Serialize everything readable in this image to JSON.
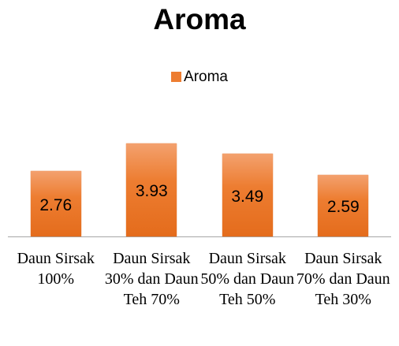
{
  "chart_data": {
    "type": "bar",
    "title": "Aroma",
    "categories": [
      "Daun Sirsak 100%",
      "Daun Sirsak 30% dan Daun Teh 70%",
      "Daun Sirsak 50% dan Daun Teh 50%",
      "Daun Sirsak 70% dan Daun Teh 30%"
    ],
    "series": [
      {
        "name": "Aroma",
        "color": "#ED7D31",
        "values": [
          2.76,
          3.93,
          3.49,
          2.59
        ]
      }
    ],
    "ylim": [
      0,
      4
    ],
    "legend": "top",
    "grid": false
  }
}
